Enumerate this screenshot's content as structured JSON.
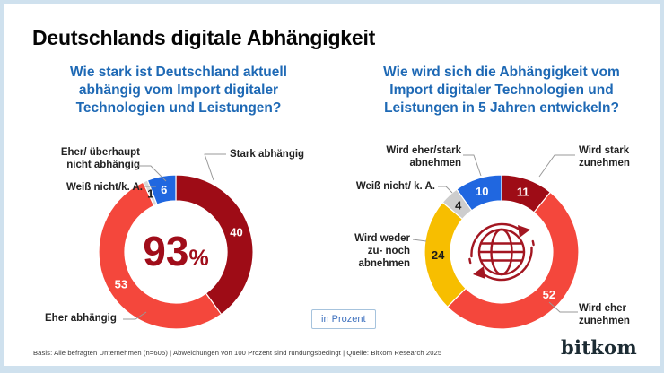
{
  "header": {
    "title": "Deutschlands digitale Abhängigkeit"
  },
  "charts": {
    "left": {
      "question": "Wie stark ist Deutschland aktuell\nabhängig vom Import digitaler\nTechnologien und Leistungen?",
      "center_value": "93",
      "center_unit": "%",
      "callout_stark": "Stark abhängig",
      "callout_eher": "Eher abhängig",
      "callout_nicht": "Eher/ überhaupt\nnicht abhängig",
      "callout_weiss": "Weiß nicht/k. A."
    },
    "right": {
      "question": "Wie wird sich die Abhängigkeit vom\nImport digitaler Technologien und\nLeistungen in 5 Jahren entwickeln?",
      "callout_stark_zunehmen": "Wird stark\nzunehmen",
      "callout_eher_zunehmen": "Wird eher\nzunehmen",
      "callout_weder": "Wird weder\nzu- noch\nabnehmen",
      "callout_weiss": "Weiß nicht/ k. A.",
      "callout_abnehmen": "Wird eher/stark\nabnehmen"
    }
  },
  "unit_badge": "in Prozent",
  "footer": {
    "source": "Basis: Alle befragten Unternehmen (n=605) | Abweichungen von 100 Prozent sind rundungsbedingt | Quelle: Bitkom Research 2025",
    "logo": "bitkom"
  },
  "colors": {
    "dark_red": "#9e0c16",
    "coral_red": "#f4473c",
    "blue": "#2067e0",
    "yellow": "#f7be00",
    "gray": "#cdcdcd",
    "question_blue": "#1e69b5",
    "center_text_red": "#a00d1a"
  },
  "chart_data": [
    {
      "type": "pie",
      "donut": true,
      "title": "Wie stark ist Deutschland aktuell abhängig vom Import digitaler Technologien und Leistungen?",
      "unit": "Prozent",
      "center_label": "93%",
      "start_angle_deg": 0,
      "clockwise": true,
      "slices": [
        {
          "label": "Stark abhängig",
          "value": 40,
          "color": "#9e0c16",
          "value_color": "#ffffff"
        },
        {
          "label": "Eher abhängig",
          "value": 53,
          "color": "#f4473c",
          "value_color": "#ffffff"
        },
        {
          "label": "Weiß nicht/k. A.",
          "value": 1,
          "color": "#d8d8d8",
          "value_color": "#1a1a1a"
        },
        {
          "label": "Eher/ überhaupt nicht abhängig",
          "value": 6,
          "color": "#2067e0",
          "value_color": "#ffffff"
        }
      ]
    },
    {
      "type": "pie",
      "donut": true,
      "title": "Wie wird sich die Abhängigkeit vom Import digitaler Technologien und Leistungen in 5 Jahren entwickeln?",
      "unit": "Prozent",
      "center_icon": "globe-sync-arrows",
      "start_angle_deg": 0,
      "clockwise": true,
      "slices": [
        {
          "label": "Wird stark zunehmen",
          "value": 11,
          "color": "#9e0c16",
          "value_color": "#ffffff"
        },
        {
          "label": "Wird eher zunehmen",
          "value": 52,
          "color": "#f4473c",
          "value_color": "#ffffff"
        },
        {
          "label": "Wird weder zu- noch abnehmen",
          "value": 24,
          "color": "#f7be00",
          "value_color": "#1a1a1a"
        },
        {
          "label": "Weiß nicht/ k. A.",
          "value": 4,
          "color": "#cdcdcd",
          "value_color": "#1a1a1a"
        },
        {
          "label": "Wird eher/stark abnehmen",
          "value": 10,
          "color": "#2067e0",
          "value_color": "#ffffff"
        }
      ]
    }
  ]
}
